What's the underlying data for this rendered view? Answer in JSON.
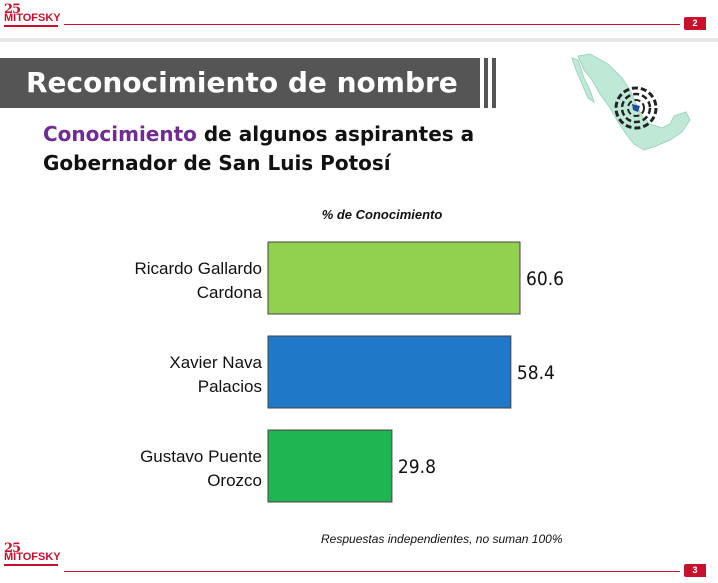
{
  "header": {
    "logo_num": "25",
    "logo_name": "MITOFSKY",
    "page_top": "2",
    "page_bottom": "3"
  },
  "title": "Reconocimiento de nombre",
  "subtitle": {
    "highlight": "Conocimiento",
    "rest_line1": " de algunos aspirantes a",
    "line2": "Gobernador de San Luis Potosí"
  },
  "footnote": "Respuestas independientes, no suman 100%",
  "colors": {
    "accent": "#c8102e",
    "title_bg": "#555555",
    "highlight": "#6f2c91",
    "map": "#bfe8d6"
  },
  "chart_data": {
    "type": "bar",
    "orientation": "horizontal",
    "title": "% de Conocimiento",
    "categories": [
      [
        "Ricardo Gallardo",
        "Cardona"
      ],
      [
        "Xavier Nava",
        "Palacios"
      ],
      [
        "Gustavo Puente",
        "Orozco"
      ]
    ],
    "values": [
      60.6,
      58.4,
      29.8
    ],
    "colors": [
      "#92d050",
      "#1f78c8",
      "#1fb553"
    ],
    "xlim": [
      0,
      100
    ],
    "grid": false,
    "legend": "none"
  }
}
